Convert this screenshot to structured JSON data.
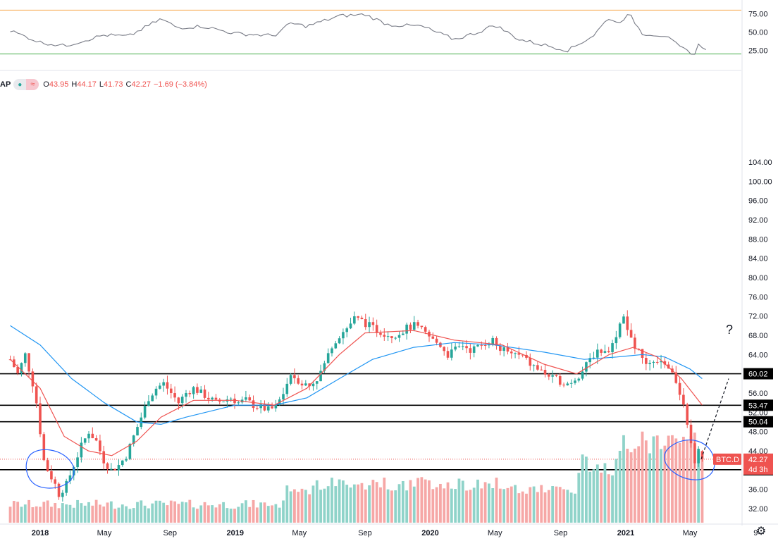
{
  "header": {
    "symbol_fragment": "AP",
    "ohlc": [
      {
        "k": "O",
        "v": "43.95"
      },
      {
        "k": "H",
        "v": "44.17"
      },
      {
        "k": "L",
        "v": "41.73"
      },
      {
        "k": "C",
        "v": "42.27"
      },
      {
        "k": "",
        "v": "−1.69 (−3.84%)"
      }
    ]
  },
  "colors": {
    "up": "#26a69a",
    "down": "#ef5350",
    "ma_fast": "#ef5350",
    "ma_slow": "#2196f3",
    "rsi_line": "#787b86",
    "rsi_upper": "#f7a649",
    "rsi_lower": "#4caf50",
    "level": "#000000",
    "circle": "#2962ff",
    "label_bg": "#000000",
    "price_tag": "#ef5350"
  },
  "chart_data": {
    "type": "candlestick",
    "y_axis_ticks": [
      "32.00",
      "36.00",
      "40.00",
      "44.00",
      "48.00",
      "52.00",
      "56.00",
      "60.00",
      "64.00",
      "68.00",
      "72.00",
      "76.00",
      "80.00",
      "84.00",
      "88.00",
      "92.00",
      "96.00",
      "100.00",
      "104.00"
    ],
    "ylim": [
      29.5,
      107
    ],
    "x_axis_ticks": [
      {
        "label": "2018",
        "date": "2018-01-01",
        "bold": true
      },
      {
        "label": "May",
        "date": "2018-05-01",
        "bold": false
      },
      {
        "label": "Sep",
        "date": "2018-09-01",
        "bold": false
      },
      {
        "label": "2019",
        "date": "2019-01-01",
        "bold": true
      },
      {
        "label": "May",
        "date": "2019-05-01",
        "bold": false
      },
      {
        "label": "Sep",
        "date": "2019-09-01",
        "bold": false
      },
      {
        "label": "2020",
        "date": "2020-01-01",
        "bold": true
      },
      {
        "label": "May",
        "date": "2020-05-01",
        "bold": false
      },
      {
        "label": "Sep",
        "date": "2020-09-01",
        "bold": false
      },
      {
        "label": "2021",
        "date": "2021-01-01",
        "bold": true
      },
      {
        "label": "May",
        "date": "2021-05-01",
        "bold": false
      },
      {
        "label": "9",
        "date": "2021-09-01",
        "bold": false
      }
    ],
    "horizontal_levels": [
      {
        "value": 60.02,
        "label": "60.02"
      },
      {
        "value": 53.47,
        "label": "53.47"
      },
      {
        "value": 50.04,
        "label": "50.04"
      },
      {
        "value": 40.07,
        "label": "40.07"
      }
    ],
    "last_price": {
      "value": 42.27,
      "symbol": "BTC.D",
      "price_label": "42.27",
      "countdown": "4d 3h"
    },
    "annotation_text": "?",
    "close_path": [
      {
        "date": "2017-11-06",
        "close": 63.0
      },
      {
        "date": "2017-11-20",
        "close": 60.0
      },
      {
        "date": "2017-12-04",
        "close": 64.0
      },
      {
        "date": "2017-12-18",
        "close": 58.0
      },
      {
        "date": "2017-12-25",
        "close": 54.0
      },
      {
        "date": "2018-01-08",
        "close": 42.0
      },
      {
        "date": "2018-01-15",
        "close": 40.0
      },
      {
        "date": "2018-01-29",
        "close": 37.0
      },
      {
        "date": "2018-02-05",
        "close": 35.0
      },
      {
        "date": "2018-02-19",
        "close": 37.0
      },
      {
        "date": "2018-03-05",
        "close": 41.0
      },
      {
        "date": "2018-03-19",
        "close": 45.0
      },
      {
        "date": "2018-04-02",
        "close": 48.0
      },
      {
        "date": "2018-04-16",
        "close": 46.0
      },
      {
        "date": "2018-04-30",
        "close": 42.0
      },
      {
        "date": "2018-05-14",
        "close": 40.0
      },
      {
        "date": "2018-05-28",
        "close": 41.0
      },
      {
        "date": "2018-06-11",
        "close": 43.0
      },
      {
        "date": "2018-06-25",
        "close": 47.0
      },
      {
        "date": "2018-07-09",
        "close": 51.0
      },
      {
        "date": "2018-07-23",
        "close": 55.0
      },
      {
        "date": "2018-08-06",
        "close": 57.0
      },
      {
        "date": "2018-08-20",
        "close": 58.0
      },
      {
        "date": "2018-09-03",
        "close": 56.0
      },
      {
        "date": "2018-09-17",
        "close": 54.0
      },
      {
        "date": "2018-10-01",
        "close": 56.0
      },
      {
        "date": "2018-10-15",
        "close": 57.0
      },
      {
        "date": "2018-10-29",
        "close": 56.0
      },
      {
        "date": "2018-11-12",
        "close": 55.0
      },
      {
        "date": "2018-11-26",
        "close": 54.0
      },
      {
        "date": "2018-12-10",
        "close": 54.5
      },
      {
        "date": "2018-12-24",
        "close": 55.0
      },
      {
        "date": "2019-01-07",
        "close": 54.0
      },
      {
        "date": "2019-01-21",
        "close": 54.5
      },
      {
        "date": "2019-02-04",
        "close": 53.5
      },
      {
        "date": "2019-02-18",
        "close": 53.0
      },
      {
        "date": "2019-03-04",
        "close": 52.5
      },
      {
        "date": "2019-03-18",
        "close": 53.0
      },
      {
        "date": "2019-04-01",
        "close": 56.0
      },
      {
        "date": "2019-04-15",
        "close": 60.0
      },
      {
        "date": "2019-05-06",
        "close": 58.0
      },
      {
        "date": "2019-05-20",
        "close": 57.5
      },
      {
        "date": "2019-06-03",
        "close": 59.0
      },
      {
        "date": "2019-06-17",
        "close": 62.0
      },
      {
        "date": "2019-07-01",
        "close": 66.0
      },
      {
        "date": "2019-07-15",
        "close": 68.0
      },
      {
        "date": "2019-07-29",
        "close": 69.5
      },
      {
        "date": "2019-08-12",
        "close": 71.5
      },
      {
        "date": "2019-08-26",
        "close": 71.0
      },
      {
        "date": "2019-09-09",
        "close": 70.0
      },
      {
        "date": "2019-09-23",
        "close": 69.0
      },
      {
        "date": "2019-10-07",
        "close": 68.5
      },
      {
        "date": "2019-10-21",
        "close": 68.0
      },
      {
        "date": "2019-11-04",
        "close": 68.5
      },
      {
        "date": "2019-11-18",
        "close": 69.5
      },
      {
        "date": "2019-12-02",
        "close": 70.0
      },
      {
        "date": "2019-12-16",
        "close": 69.0
      },
      {
        "date": "2020-01-06",
        "close": 67.0
      },
      {
        "date": "2020-01-20",
        "close": 66.0
      },
      {
        "date": "2020-02-03",
        "close": 64.0
      },
      {
        "date": "2020-02-17",
        "close": 65.0
      },
      {
        "date": "2020-03-02",
        "close": 66.0
      },
      {
        "date": "2020-03-16",
        "close": 65.0
      },
      {
        "date": "2020-03-30",
        "close": 65.5
      },
      {
        "date": "2020-04-13",
        "close": 66.5
      },
      {
        "date": "2020-04-27",
        "close": 67.0
      },
      {
        "date": "2020-05-11",
        "close": 65.0
      },
      {
        "date": "2020-05-25",
        "close": 64.5
      },
      {
        "date": "2020-06-08",
        "close": 64.0
      },
      {
        "date": "2020-06-22",
        "close": 63.5
      },
      {
        "date": "2020-07-06",
        "close": 62.0
      },
      {
        "date": "2020-07-20",
        "close": 61.0
      },
      {
        "date": "2020-08-03",
        "close": 60.0
      },
      {
        "date": "2020-08-17",
        "close": 59.0
      },
      {
        "date": "2020-08-31",
        "close": 58.5
      },
      {
        "date": "2020-09-14",
        "close": 58.0
      },
      {
        "date": "2020-09-28",
        "close": 59.0
      },
      {
        "date": "2020-10-12",
        "close": 60.5
      },
      {
        "date": "2020-10-26",
        "close": 63.0
      },
      {
        "date": "2020-11-09",
        "close": 65.0
      },
      {
        "date": "2020-11-23",
        "close": 64.5
      },
      {
        "date": "2020-12-07",
        "close": 66.0
      },
      {
        "date": "2020-12-21",
        "close": 70.5
      },
      {
        "date": "2020-12-28",
        "close": 71.5
      },
      {
        "date": "2021-01-04",
        "close": 69.0
      },
      {
        "date": "2021-01-18",
        "close": 66.0
      },
      {
        "date": "2021-02-01",
        "close": 63.0
      },
      {
        "date": "2021-02-15",
        "close": 61.5
      },
      {
        "date": "2021-03-01",
        "close": 62.0
      },
      {
        "date": "2021-03-15",
        "close": 62.5
      },
      {
        "date": "2021-03-29",
        "close": 61.0
      },
      {
        "date": "2021-04-12",
        "close": 56.0
      },
      {
        "date": "2021-04-26",
        "close": 50.0
      },
      {
        "date": "2021-05-03",
        "close": 46.0
      },
      {
        "date": "2021-05-10",
        "close": 42.0
      },
      {
        "date": "2021-05-17",
        "close": 44.0
      },
      {
        "date": "2021-05-24",
        "close": 42.27
      }
    ],
    "ma_slow_path": [
      {
        "date": "2017-11-06",
        "value": 70.0
      },
      {
        "date": "2018-01-01",
        "value": 66.0
      },
      {
        "date": "2018-03-01",
        "value": 59.0
      },
      {
        "date": "2018-05-01",
        "value": 54.0
      },
      {
        "date": "2018-07-01",
        "value": 50.0
      },
      {
        "date": "2018-08-15",
        "value": 49.5
      },
      {
        "date": "2018-10-01",
        "value": 51.0
      },
      {
        "date": "2019-01-01",
        "value": 53.5
      },
      {
        "date": "2019-03-15",
        "value": 53.5
      },
      {
        "date": "2019-05-15",
        "value": 55.0
      },
      {
        "date": "2019-07-15",
        "value": 59.0
      },
      {
        "date": "2019-09-15",
        "value": 63.0
      },
      {
        "date": "2019-12-01",
        "value": 65.5
      },
      {
        "date": "2020-02-15",
        "value": 66.5
      },
      {
        "date": "2020-05-01",
        "value": 66.0
      },
      {
        "date": "2020-08-01",
        "value": 64.5
      },
      {
        "date": "2020-10-15",
        "value": 63.0
      },
      {
        "date": "2020-12-15",
        "value": 63.5
      },
      {
        "date": "2021-02-01",
        "value": 64.0
      },
      {
        "date": "2021-03-15",
        "value": 63.5
      },
      {
        "date": "2021-05-01",
        "value": 61.0
      },
      {
        "date": "2021-05-24",
        "value": 59.0
      }
    ],
    "ma_fast_path": [
      {
        "date": "2017-11-06",
        "value": 63.0
      },
      {
        "date": "2018-01-01",
        "value": 57.0
      },
      {
        "date": "2018-02-15",
        "value": 47.0
      },
      {
        "date": "2018-04-01",
        "value": 44.0
      },
      {
        "date": "2018-05-15",
        "value": 43.0
      },
      {
        "date": "2018-07-01",
        "value": 46.0
      },
      {
        "date": "2018-08-15",
        "value": 51.0
      },
      {
        "date": "2018-10-15",
        "value": 54.5
      },
      {
        "date": "2019-01-01",
        "value": 54.5
      },
      {
        "date": "2019-03-15",
        "value": 53.5
      },
      {
        "date": "2019-05-15",
        "value": 57.0
      },
      {
        "date": "2019-07-15",
        "value": 64.0
      },
      {
        "date": "2019-09-01",
        "value": 68.5
      },
      {
        "date": "2019-12-01",
        "value": 69.0
      },
      {
        "date": "2020-02-15",
        "value": 67.0
      },
      {
        "date": "2020-05-15",
        "value": 66.0
      },
      {
        "date": "2020-08-01",
        "value": 62.0
      },
      {
        "date": "2020-10-01",
        "value": 60.0
      },
      {
        "date": "2020-12-01",
        "value": 64.0
      },
      {
        "date": "2021-01-15",
        "value": 65.5
      },
      {
        "date": "2021-03-01",
        "value": 63.5
      },
      {
        "date": "2021-04-15",
        "value": 59.0
      },
      {
        "date": "2021-05-24",
        "value": 53.5
      }
    ],
    "rsi_path": [
      {
        "date": "2017-11-06",
        "value": 52
      },
      {
        "date": "2018-01-01",
        "value": 36
      },
      {
        "date": "2018-02-15",
        "value": 31
      },
      {
        "date": "2018-05-01",
        "value": 46
      },
      {
        "date": "2018-06-15",
        "value": 44
      },
      {
        "date": "2018-08-15",
        "value": 68
      },
      {
        "date": "2018-09-15",
        "value": 56
      },
      {
        "date": "2018-11-01",
        "value": 58
      },
      {
        "date": "2019-01-01",
        "value": 48
      },
      {
        "date": "2019-03-15",
        "value": 45
      },
      {
        "date": "2019-04-15",
        "value": 62
      },
      {
        "date": "2019-05-15",
        "value": 58
      },
      {
        "date": "2019-07-15",
        "value": 72
      },
      {
        "date": "2019-09-01",
        "value": 74
      },
      {
        "date": "2019-10-15",
        "value": 60
      },
      {
        "date": "2019-12-15",
        "value": 58
      },
      {
        "date": "2020-02-15",
        "value": 40
      },
      {
        "date": "2020-04-01",
        "value": 50
      },
      {
        "date": "2020-05-01",
        "value": 60
      },
      {
        "date": "2020-06-15",
        "value": 40
      },
      {
        "date": "2020-08-15",
        "value": 30
      },
      {
        "date": "2020-09-15",
        "value": 25
      },
      {
        "date": "2020-11-01",
        "value": 45
      },
      {
        "date": "2020-12-01",
        "value": 70
      },
      {
        "date": "2020-12-15",
        "value": 62
      },
      {
        "date": "2021-01-08",
        "value": 74
      },
      {
        "date": "2021-02-01",
        "value": 48
      },
      {
        "date": "2021-03-15",
        "value": 45
      },
      {
        "date": "2021-04-15",
        "value": 28
      },
      {
        "date": "2021-05-12",
        "value": 19
      },
      {
        "date": "2021-05-17",
        "value": 32
      },
      {
        "date": "2021-05-31",
        "value": 28
      }
    ],
    "rsi_ticks": [
      "25.00",
      "50.00",
      "75.00"
    ],
    "rsi_levels": [
      80,
      20
    ],
    "rsi_ylim": [
      10,
      90
    ]
  }
}
